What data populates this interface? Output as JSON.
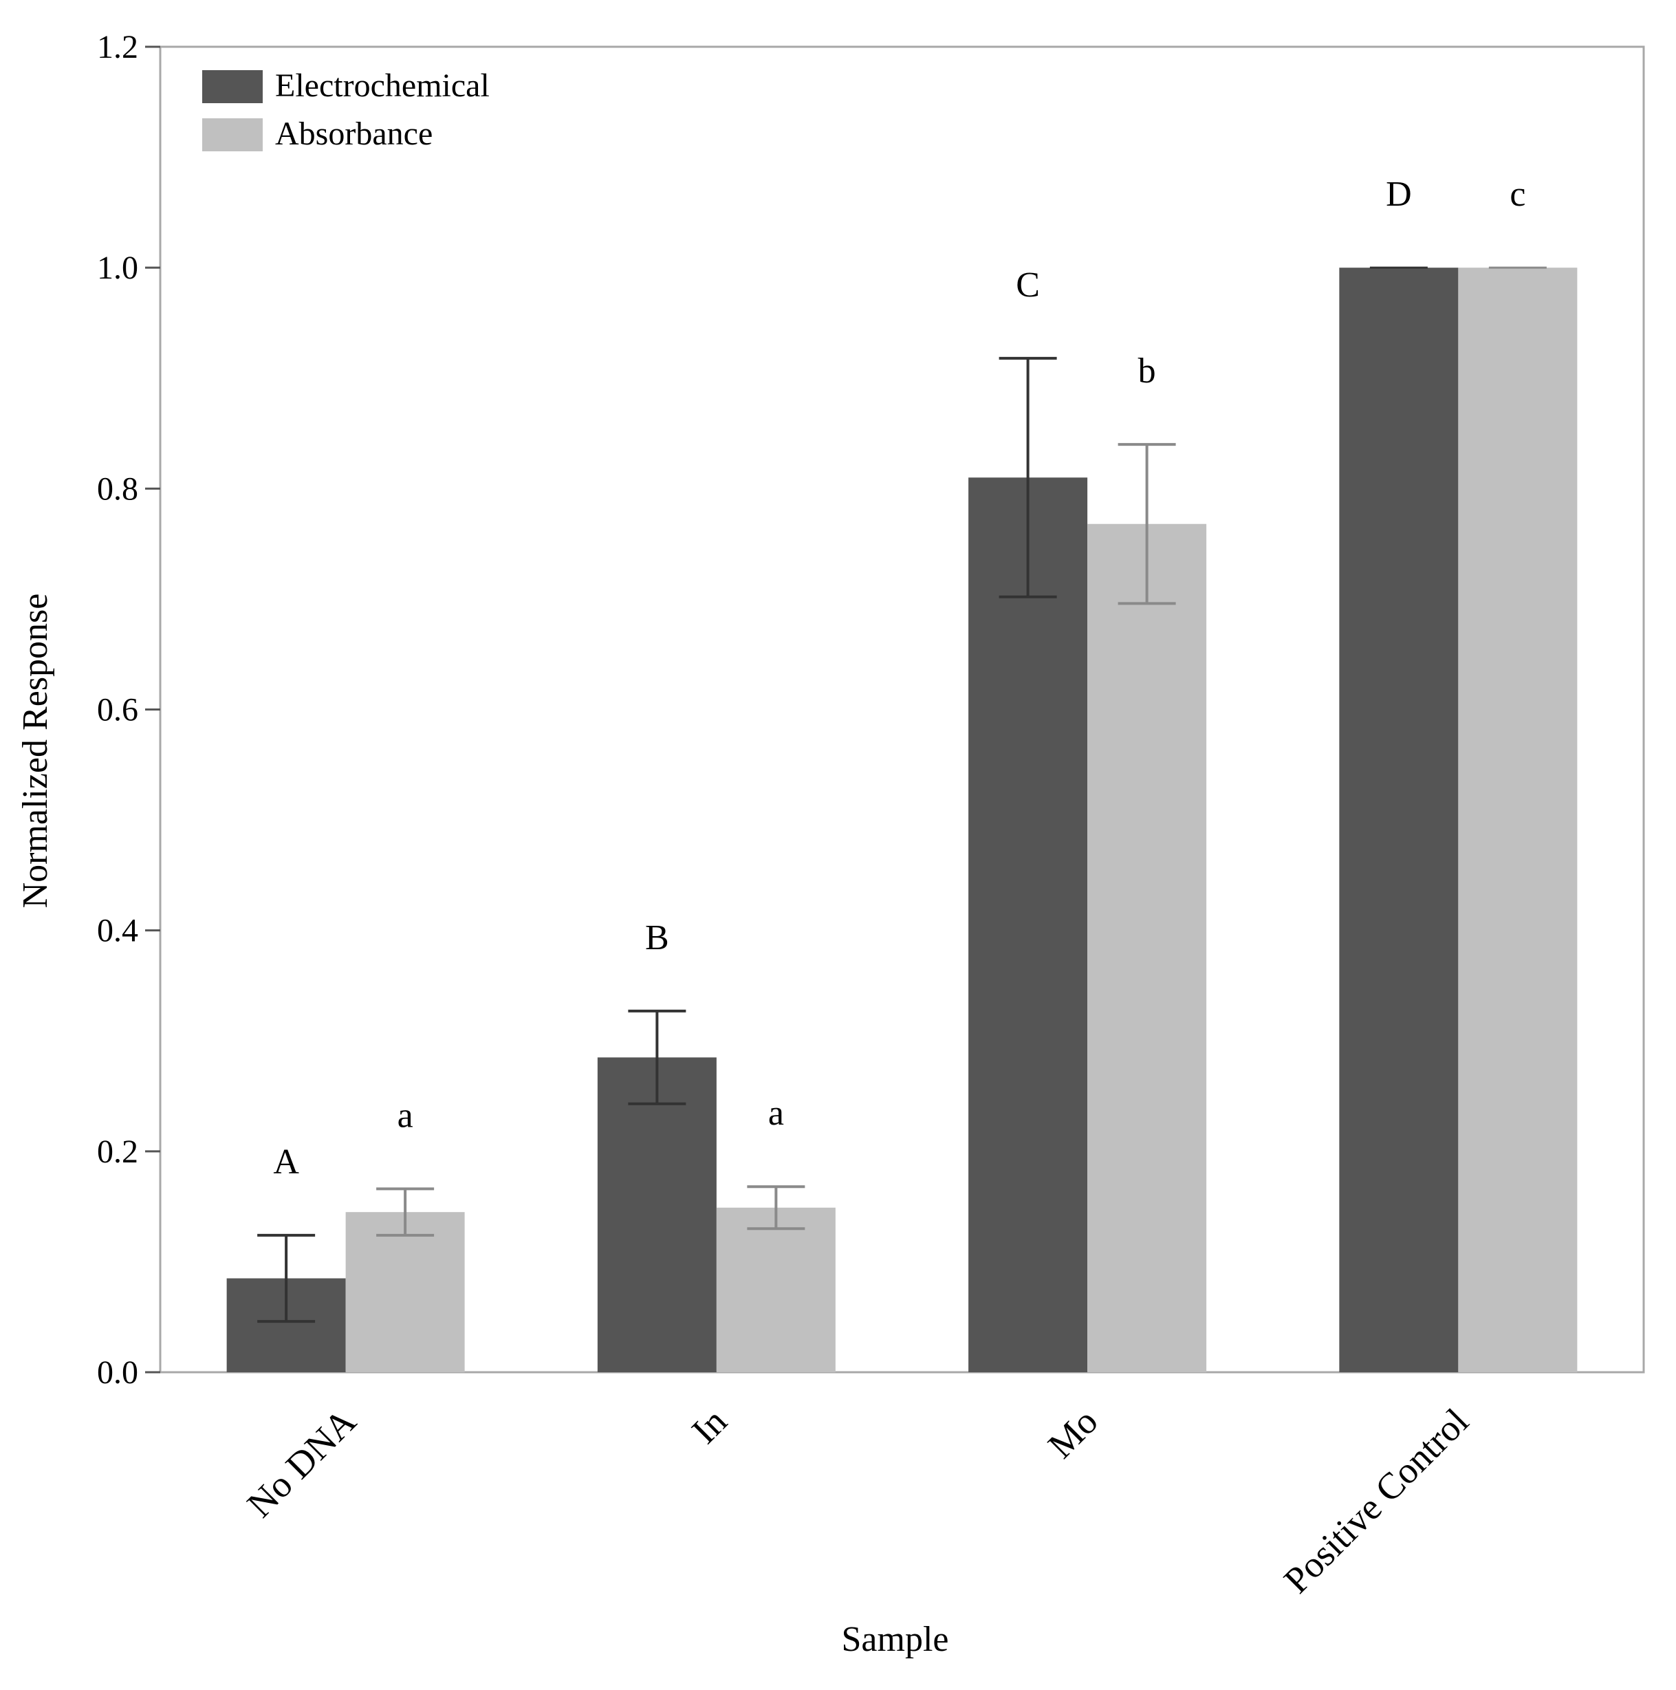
{
  "chart_data": {
    "type": "bar",
    "title": "",
    "xlabel": "Sample",
    "ylabel": "Normalized Response",
    "ylim": [
      0,
      1.2
    ],
    "yticks": [
      "0.0",
      "0.2",
      "0.4",
      "0.6",
      "0.8",
      "1.0",
      "1.2"
    ],
    "categories": [
      "No DNA",
      "In",
      "Mo",
      "Positive Control"
    ],
    "series": [
      {
        "name": "Electrochemical",
        "color": "#555555",
        "error_color": "#333333",
        "values": [
          0.085,
          0.285,
          0.81,
          1.0
        ],
        "errors": [
          0.039,
          0.042,
          0.108,
          0.0
        ],
        "significance": [
          "A",
          "B",
          "C",
          "D"
        ]
      },
      {
        "name": "Absorbance",
        "color": "#c0c0c0",
        "error_color": "#8a8a8a",
        "values": [
          0.145,
          0.149,
          0.768,
          1.0
        ],
        "errors": [
          0.021,
          0.019,
          0.072,
          0.0
        ],
        "significance": [
          "a",
          "a",
          "b",
          "c"
        ]
      }
    ],
    "legend_position": "top-left",
    "grid": false,
    "frame_color": "#a8a8a8"
  }
}
